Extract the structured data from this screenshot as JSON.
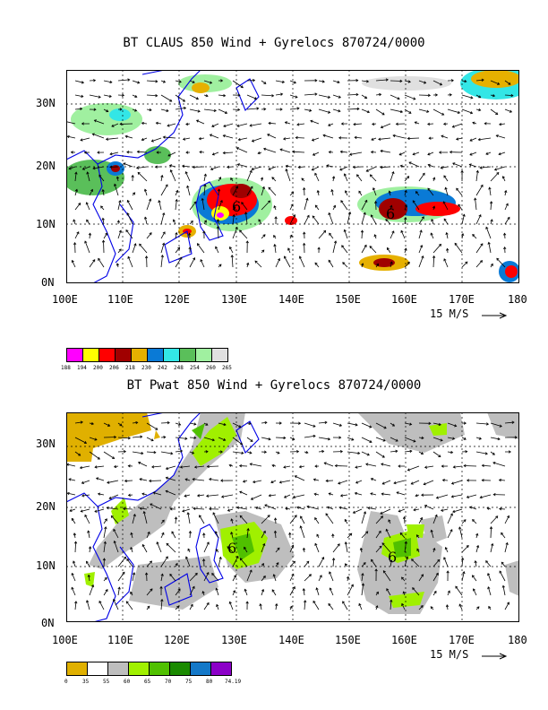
{
  "panel_top": {
    "title": "BT CLAUS 850 Wind + Gyrelocs 870724/0000",
    "lat_labels": [
      "30N",
      "20N",
      "10N",
      "0N"
    ],
    "lon_labels": [
      "100E",
      "110E",
      "120E",
      "130E",
      "140E",
      "150E",
      "160E",
      "170E",
      "180"
    ],
    "vector_label": "15 M/S",
    "storm_symbols": [
      "6",
      "6"
    ],
    "colorbar_levels": [
      "188",
      "194",
      "200",
      "206",
      "218",
      "230",
      "242",
      "248",
      "254",
      "260",
      "265"
    ],
    "colorbar_colors": [
      "#ff00ff",
      "#ffff00",
      "#ff0000",
      "#a00000",
      "#e6b000",
      "#0a7ad6",
      "#33e6e6",
      "#5abf5a",
      "#a0f0a0",
      "#e0e0e0"
    ]
  },
  "panel_bottom": {
    "title": "BT Pwat 850 Wind + Gyrelocs 870724/0000",
    "lat_labels": [
      "30N",
      "20N",
      "10N",
      "0N"
    ],
    "lon_labels": [
      "100E",
      "110E",
      "120E",
      "130E",
      "140E",
      "150E",
      "160E",
      "170E",
      "180"
    ],
    "vector_label": "15 M/S",
    "storm_symbols": [
      "6",
      "6"
    ],
    "colorbar_levels": [
      "0",
      "35",
      "55",
      "60",
      "65",
      "70",
      "75",
      "80",
      "74.19"
    ],
    "colorbar_colors": [
      "#e0b000",
      "#ffffff",
      "#bebebe",
      "#a0f000",
      "#50c000",
      "#1a8a00",
      "#1478c8",
      "#8c00c8"
    ]
  }
}
